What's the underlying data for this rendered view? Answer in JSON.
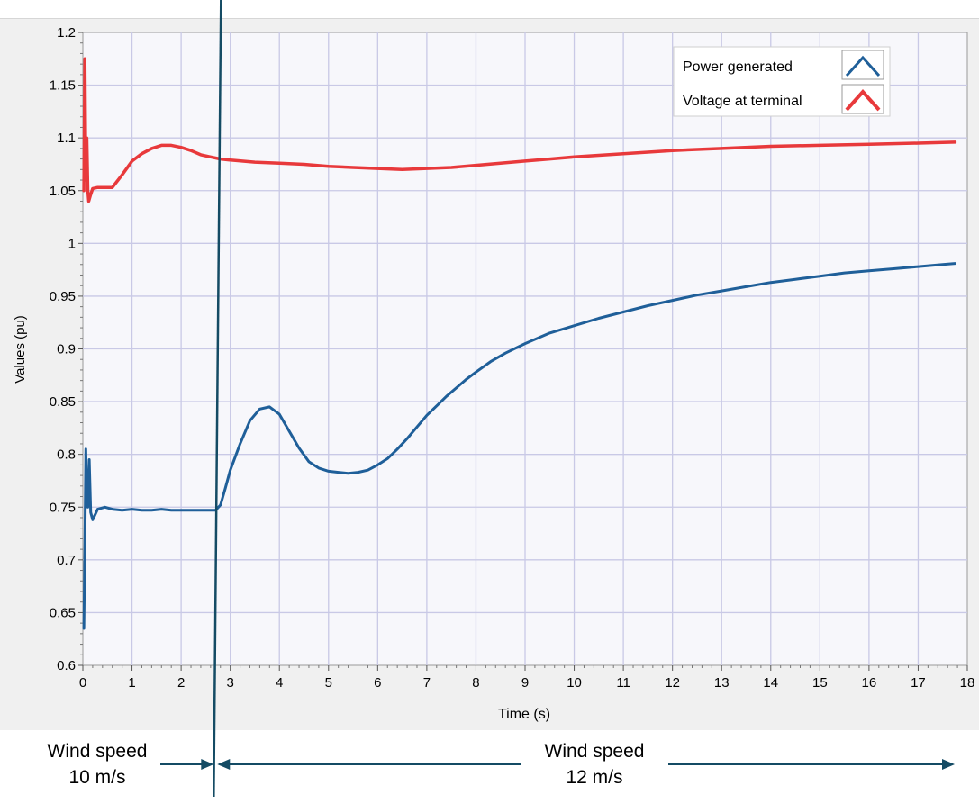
{
  "chart_data": {
    "type": "line",
    "xlabel": "Time (s)",
    "ylabel": "Values (pu)",
    "xlim": [
      0,
      18
    ],
    "ylim": [
      0.6,
      1.2
    ],
    "x_ticks": [
      "0",
      "1",
      "2",
      "3",
      "4",
      "5",
      "6",
      "7",
      "8",
      "9",
      "10",
      "11",
      "12",
      "13",
      "14",
      "15",
      "16",
      "17",
      "18"
    ],
    "y_ticks": [
      "0.6",
      "0.65",
      "0.7",
      "0.75",
      "0.8",
      "0.85",
      "0.9",
      "0.95",
      "1",
      "1.05",
      "1.1",
      "1.15",
      "1.2"
    ],
    "grid": true,
    "legend_position": "top-right",
    "series": [
      {
        "name": "Power generated",
        "color": "#1f5f99",
        "x": [
          0.02,
          0.04,
          0.06,
          0.08,
          0.1,
          0.13,
          0.16,
          0.2,
          0.3,
          0.45,
          0.6,
          0.8,
          1.0,
          1.2,
          1.4,
          1.6,
          1.8,
          2.0,
          2.2,
          2.4,
          2.6,
          2.7,
          2.8,
          2.9,
          3.0,
          3.2,
          3.4,
          3.6,
          3.8,
          4.0,
          4.2,
          4.4,
          4.6,
          4.8,
          5.0,
          5.2,
          5.4,
          5.6,
          5.8,
          6.0,
          6.2,
          6.4,
          6.6,
          6.8,
          7.0,
          7.2,
          7.4,
          7.6,
          7.8,
          8.0,
          8.3,
          8.6,
          9.0,
          9.5,
          10.0,
          10.5,
          11.0,
          11.5,
          12.0,
          12.5,
          13.0,
          13.5,
          14.0,
          14.5,
          15.0,
          15.5,
          16.0,
          16.5,
          17.0,
          17.5,
          17.75
        ],
        "y": [
          0.635,
          0.71,
          0.805,
          0.76,
          0.75,
          0.795,
          0.745,
          0.738,
          0.748,
          0.75,
          0.748,
          0.747,
          0.748,
          0.747,
          0.747,
          0.748,
          0.747,
          0.747,
          0.747,
          0.747,
          0.747,
          0.747,
          0.752,
          0.768,
          0.785,
          0.81,
          0.832,
          0.843,
          0.845,
          0.838,
          0.822,
          0.806,
          0.793,
          0.787,
          0.784,
          0.783,
          0.782,
          0.783,
          0.785,
          0.79,
          0.796,
          0.805,
          0.815,
          0.826,
          0.837,
          0.846,
          0.855,
          0.863,
          0.871,
          0.878,
          0.888,
          0.896,
          0.905,
          0.915,
          0.922,
          0.929,
          0.935,
          0.941,
          0.946,
          0.951,
          0.955,
          0.959,
          0.963,
          0.966,
          0.969,
          0.972,
          0.974,
          0.976,
          0.978,
          0.98,
          0.981
        ]
      },
      {
        "name": "Voltage at terminal",
        "color": "#e8393b",
        "x": [
          0.02,
          0.04,
          0.06,
          0.08,
          0.1,
          0.12,
          0.15,
          0.2,
          0.3,
          0.45,
          0.6,
          0.8,
          1.0,
          1.2,
          1.4,
          1.6,
          1.8,
          2.0,
          2.2,
          2.4,
          2.6,
          2.8,
          3.0,
          3.5,
          4.0,
          4.5,
          5.0,
          5.5,
          6.0,
          6.5,
          7.0,
          7.5,
          8.0,
          8.5,
          9.0,
          9.5,
          10.0,
          11.0,
          12.0,
          13.0,
          14.0,
          15.0,
          16.0,
          17.0,
          17.75
        ],
        "y": [
          1.05,
          1.175,
          1.06,
          1.1,
          1.05,
          1.04,
          1.045,
          1.052,
          1.053,
          1.053,
          1.053,
          1.065,
          1.078,
          1.085,
          1.09,
          1.093,
          1.093,
          1.091,
          1.088,
          1.084,
          1.082,
          1.08,
          1.079,
          1.077,
          1.076,
          1.075,
          1.073,
          1.072,
          1.071,
          1.07,
          1.071,
          1.072,
          1.074,
          1.076,
          1.078,
          1.08,
          1.082,
          1.085,
          1.088,
          1.09,
          1.092,
          1.093,
          1.094,
          1.095,
          1.096
        ]
      }
    ]
  },
  "annotations": {
    "left_line1": "Wind speed",
    "left_line2": "10 m/s",
    "right_line1": "Wind speed",
    "right_line2": "12 m/s",
    "marker_time": 2.7,
    "marker_color": "#144b64"
  }
}
